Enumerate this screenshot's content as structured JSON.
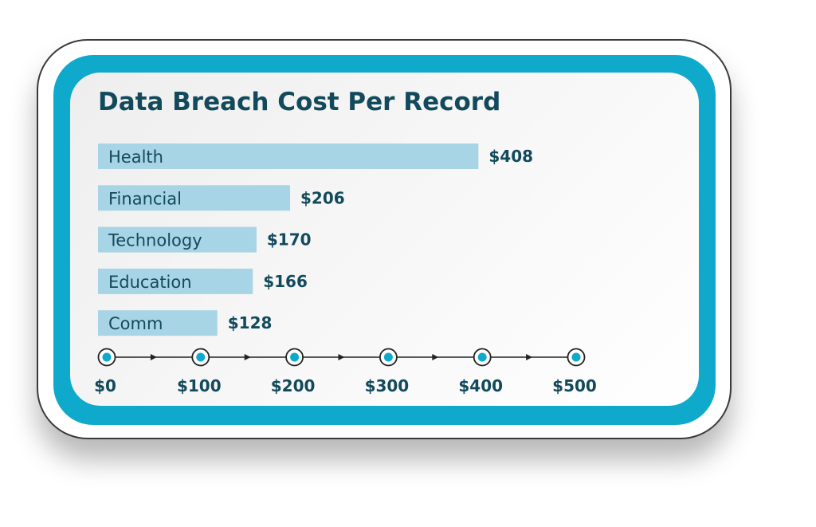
{
  "chart_data": {
    "type": "bar",
    "orientation": "horizontal",
    "title": "Data Breach Cost Per Record",
    "categories": [
      "Health",
      "Financial",
      "Technology",
      "Education",
      "Comm"
    ],
    "values": [
      408,
      206,
      170,
      166,
      128
    ],
    "value_labels": [
      "$408",
      "$206",
      "$170",
      "$166",
      "$128"
    ],
    "x_ticks": [
      0,
      100,
      200,
      300,
      400,
      500
    ],
    "x_tick_labels": [
      "$0",
      "$100",
      "$200",
      "$300",
      "$400",
      "$500"
    ],
    "xlim": [
      0,
      500
    ],
    "grid": false,
    "legend": "none"
  },
  "colors": {
    "frame_accent": "#0fa9cc",
    "bar_fill": "#a8d5e5",
    "title_text": "#124a5c",
    "label_text": "#124a5c",
    "axis_dot": "#0fa9cc"
  }
}
